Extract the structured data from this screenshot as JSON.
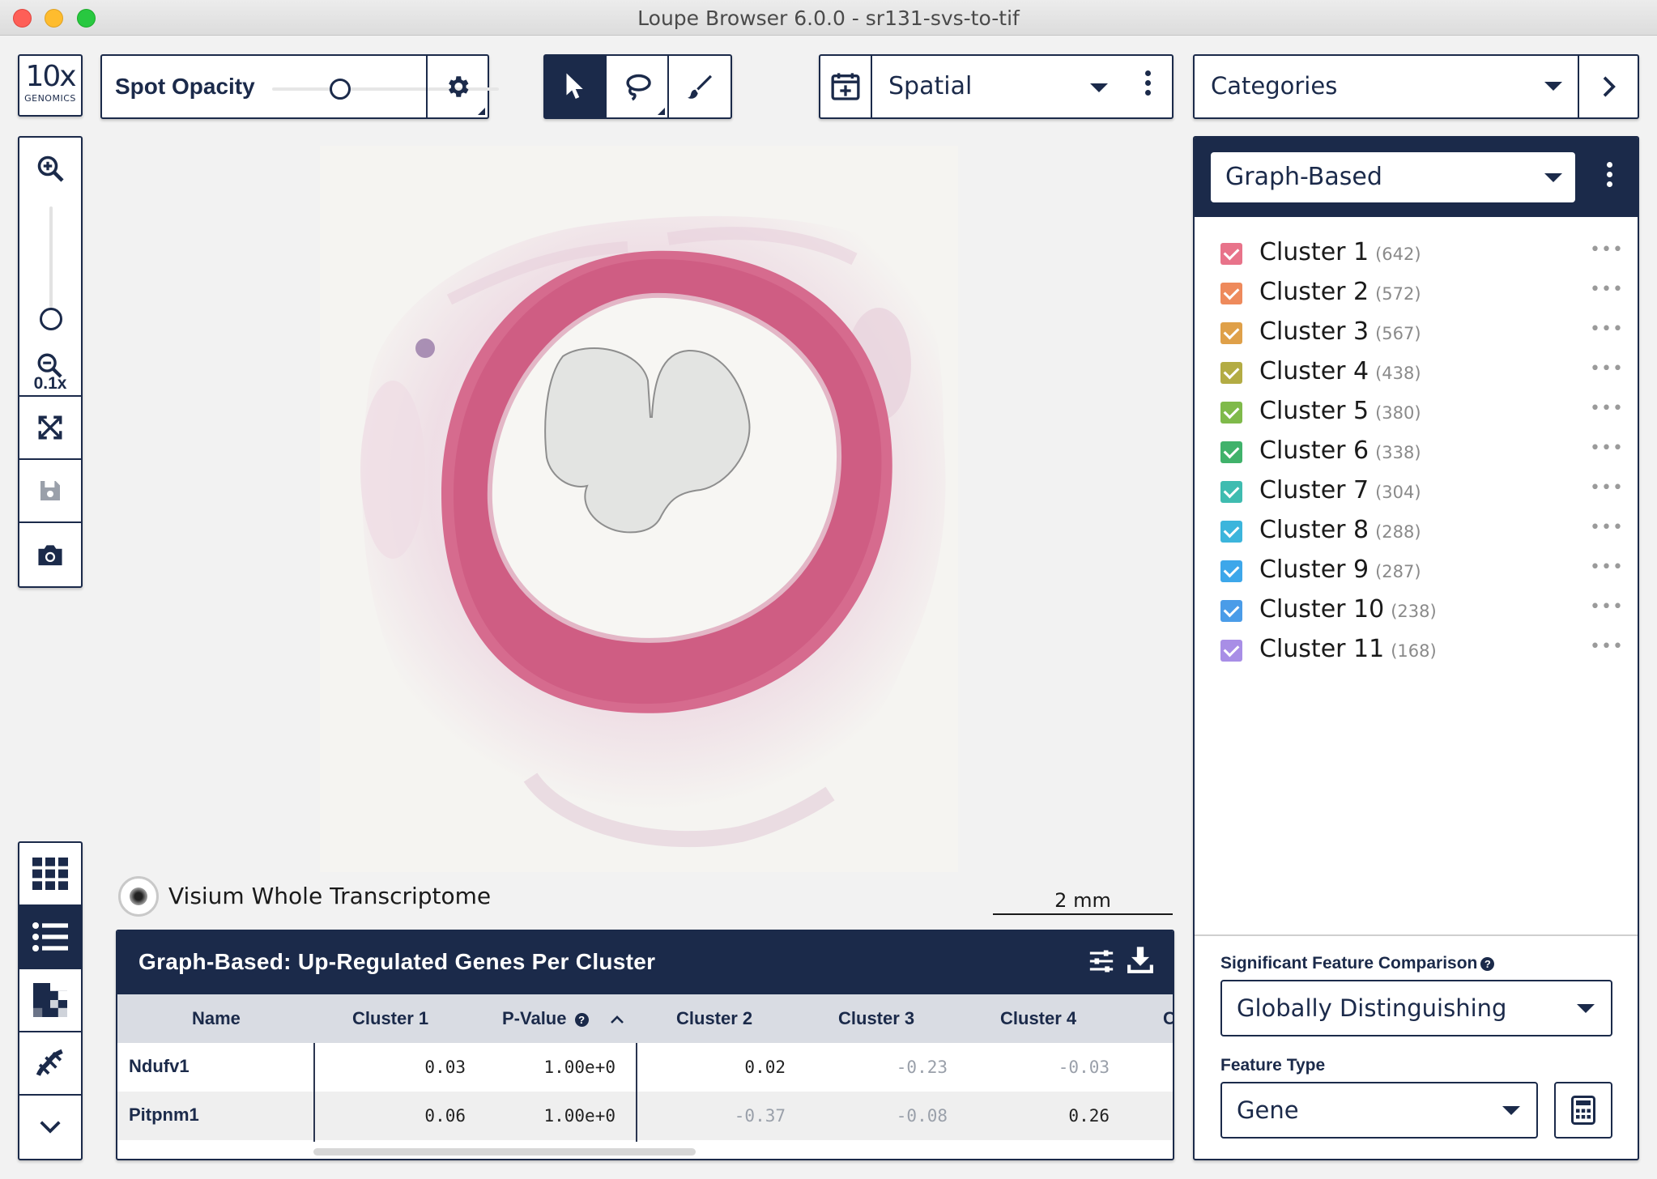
{
  "window": {
    "title": "Loupe Browser 6.0.0 - sr131-svs-to-tif"
  },
  "logo": {
    "main": "10x",
    "sub": "GENOMICS"
  },
  "toolbar": {
    "spot_opacity_label": "Spot Opacity",
    "spot_opacity_value": 0.3,
    "view_mode": "Spatial",
    "categories_label": "Categories"
  },
  "left_tools": {
    "zoom_level": "0.1x"
  },
  "image": {
    "name": "Visium Whole Transcriptome",
    "scale_label": "2 mm"
  },
  "table": {
    "title": "Graph-Based: Up-Regulated Genes Per Cluster",
    "columns": [
      "Name",
      "Cluster 1",
      "P-Value",
      "Cluster 2",
      "Cluster 3",
      "Cluster 4",
      "C"
    ],
    "rows": [
      {
        "name": "Ndufv1",
        "cluster1": "0.03",
        "pvalue": "1.00e+0",
        "cluster2": "0.02",
        "cluster3": "-0.23",
        "cluster4": "-0.03"
      },
      {
        "name": "Pitpnm1",
        "cluster1": "0.06",
        "pvalue": "1.00e+0",
        "cluster2": "-0.37",
        "cluster3": "-0.08",
        "cluster4": "0.26"
      }
    ]
  },
  "clusters": {
    "selector": "Graph-Based",
    "items": [
      {
        "name": "Cluster 1",
        "count": "(642)",
        "color": "#e8738a"
      },
      {
        "name": "Cluster 2",
        "count": "(572)",
        "color": "#ee8a5c"
      },
      {
        "name": "Cluster 3",
        "count": "(567)",
        "color": "#dfa049"
      },
      {
        "name": "Cluster 4",
        "count": "(438)",
        "color": "#b3ac44"
      },
      {
        "name": "Cluster 5",
        "count": "(380)",
        "color": "#7fba4a"
      },
      {
        "name": "Cluster 6",
        "count": "(338)",
        "color": "#40b26b"
      },
      {
        "name": "Cluster 7",
        "count": "(304)",
        "color": "#3fbcb0"
      },
      {
        "name": "Cluster 8",
        "count": "(288)",
        "color": "#3cb5dc"
      },
      {
        "name": "Cluster 9",
        "count": "(287)",
        "color": "#3da7ea"
      },
      {
        "name": "Cluster 10",
        "count": "(238)",
        "color": "#4a9ce8"
      },
      {
        "name": "Cluster 11",
        "count": "(168)",
        "color": "#a88ee6"
      }
    ]
  },
  "feature_panel": {
    "comparison_label": "Significant Feature Comparison",
    "comparison_value": "Globally Distinguishing",
    "feature_type_label": "Feature Type",
    "feature_type_value": "Gene"
  },
  "icons": {
    "spot_settings": "gear-icon",
    "tools": [
      "pointer-icon",
      "lasso-icon",
      "paintbrush-icon"
    ],
    "spatial": "calendar-add-icon",
    "left_toolbar": [
      "zoom-in-icon",
      "zoom-out-icon",
      "fit-view-icon",
      "save-icon",
      "camera-icon"
    ],
    "bottom_toolbar": [
      "grid-icon",
      "list-icon",
      "heatmap-icon",
      "violin-icon",
      "chevron-down-icon"
    ],
    "table": [
      "filter-sliders-icon",
      "download-icon"
    ],
    "feature_type_action": "calculator-icon"
  }
}
